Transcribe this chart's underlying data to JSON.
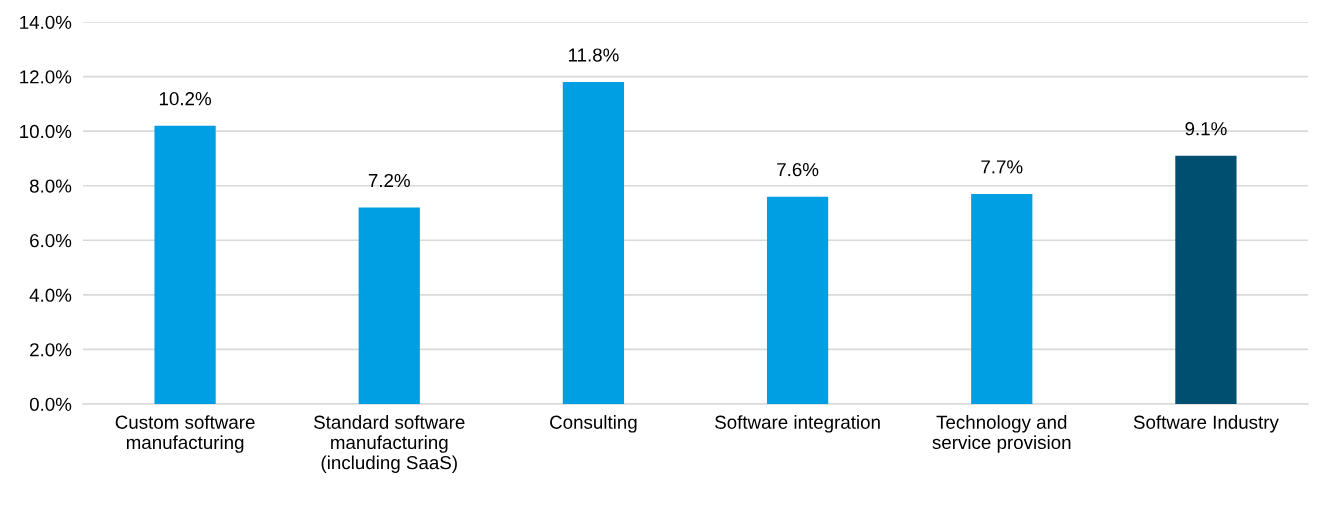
{
  "chart_data": {
    "type": "bar",
    "categories": [
      "Custom software\nmanufacturing",
      "Standard software\nmanufacturing\n(including SaaS)",
      "Consulting",
      "Software integration",
      "Technology and\nservice provision",
      "Software Industry"
    ],
    "values": [
      10.2,
      7.2,
      11.8,
      7.6,
      7.7,
      9.1
    ],
    "colors": [
      "#009fe3",
      "#009fe3",
      "#009fe3",
      "#009fe3",
      "#009fe3",
      "#004f71"
    ],
    "value_labels": [
      "10.2%",
      "7.2%",
      "11.8%",
      "7.6%",
      "7.7%",
      "9.1%"
    ],
    "ylim": [
      0,
      14
    ],
    "yticks": [
      {
        "value": 0,
        "label": "0.0%"
      },
      {
        "value": 2,
        "label": "2.0%"
      },
      {
        "value": 4,
        "label": "4.0%"
      },
      {
        "value": 6,
        "label": "6.0%"
      },
      {
        "value": 8,
        "label": "8.0%"
      },
      {
        "value": 10,
        "label": "10.0%"
      },
      {
        "value": 12,
        "label": "12.0%"
      },
      {
        "value": 14,
        "label": "14.0%"
      }
    ],
    "grid": "y"
  }
}
